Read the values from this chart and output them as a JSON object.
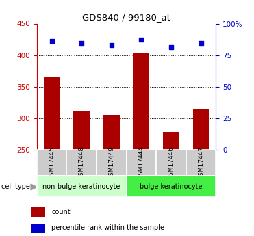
{
  "title": "GDS840 / 99180_at",
  "samples": [
    "GSM17445",
    "GSM17448",
    "GSM17449",
    "GSM17444",
    "GSM17446",
    "GSM17447"
  ],
  "counts": [
    365,
    312,
    305,
    403,
    278,
    315
  ],
  "percentiles": [
    422,
    419,
    416,
    425,
    413,
    419
  ],
  "ylim_left": [
    250,
    450
  ],
  "ylim_right": [
    0,
    100
  ],
  "yticks_left": [
    250,
    300,
    350,
    400,
    450
  ],
  "yticks_right": [
    0,
    25,
    50,
    75,
    100
  ],
  "ytick_labels_right": [
    "0",
    "25",
    "50",
    "75",
    "100%"
  ],
  "bar_color": "#aa0000",
  "scatter_color": "#0000cc",
  "groups": [
    {
      "label": "non-bulge keratinocyte",
      "start": 0,
      "end": 2,
      "color": "#ccffcc"
    },
    {
      "label": "bulge keratinocyte",
      "start": 3,
      "end": 5,
      "color": "#44ee44"
    }
  ],
  "legend_items": [
    {
      "color": "#aa0000",
      "label": "count"
    },
    {
      "color": "#0000cc",
      "label": "percentile rank within the sample"
    }
  ],
  "cell_type_label": "cell type",
  "bar_width": 0.55,
  "grid_color": "black",
  "background_plot": "#ffffff",
  "tick_color_left": "#cc0000",
  "tick_color_right": "#0000cc",
  "label_box_color": "#cccccc",
  "fig_width": 3.71,
  "fig_height": 3.45,
  "dpi": 100
}
